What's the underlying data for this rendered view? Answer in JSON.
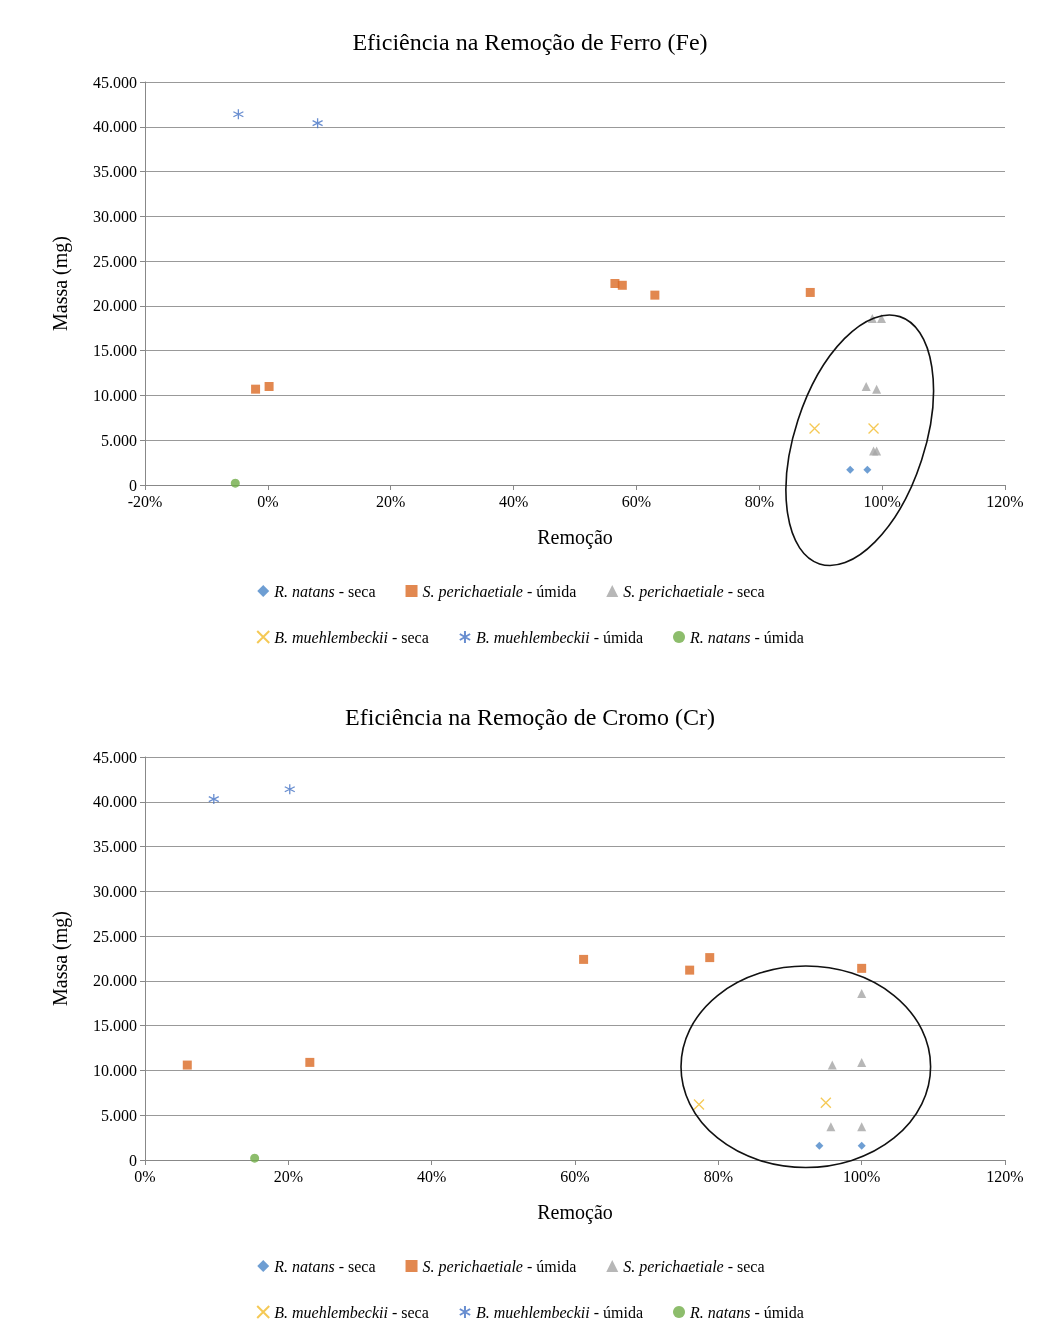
{
  "chart_data": [
    {
      "type": "scatter",
      "title": "Eficiência na Remoção de Ferro (Fe)",
      "xlabel": "Remoção",
      "ylabel": "Massa (mg)",
      "xlim": [
        -20,
        120
      ],
      "xticks": [
        {
          "value": -20,
          "label": "-20%"
        },
        {
          "value": 0,
          "label": "0%"
        },
        {
          "value": 20,
          "label": "20%"
        },
        {
          "value": 40,
          "label": "40%"
        },
        {
          "value": 60,
          "label": "60%"
        },
        {
          "value": 80,
          "label": "80%"
        },
        {
          "value": 100,
          "label": "100%"
        },
        {
          "value": 120,
          "label": "120%"
        }
      ],
      "ylim": [
        0,
        45000
      ],
      "yticks": [
        0,
        {
          "value": 5000,
          "label": "5.000"
        },
        {
          "value": 10000,
          "label": "10.000"
        },
        {
          "value": 15000,
          "label": "15.000"
        },
        {
          "value": 20000,
          "label": "20.000"
        },
        {
          "value": 25000,
          "label": "25.000"
        },
        {
          "value": 30000,
          "label": "30.000"
        },
        {
          "value": 35000,
          "label": "35.000"
        },
        {
          "value": 40000,
          "label": "40.000"
        },
        {
          "value": 45000,
          "label": "45.000"
        }
      ],
      "grid": "y",
      "legend": "bottom",
      "series": [
        {
          "name": "R. natans - seca",
          "color": "#4a86c8",
          "marker": "diamond",
          "x": [
            94.8,
            97.6
          ],
          "values": [
            1700,
            1700
          ]
        },
        {
          "name": "S. perichaetiale - úmida",
          "color": "#db6a24",
          "marker": "square",
          "x": [
            -2,
            0.2,
            56.5,
            57.7,
            63,
            88.3
          ],
          "values": [
            10700,
            11000,
            22500,
            22300,
            21200,
            21500
          ]
        },
        {
          "name": "S. perichaetiale - seca",
          "color": "#a5a5a5",
          "marker": "triangle",
          "x": [
            98.4,
            99.9,
            97.4,
            99.1,
            98.6,
            99.1
          ],
          "values": [
            18600,
            18600,
            11000,
            10700,
            3800,
            3800
          ]
        },
        {
          "name": "B. muehlembeckii - seca",
          "color": "#f2bb2a",
          "marker": "cross",
          "x": [
            89,
            98.6
          ],
          "values": [
            6300,
            6300
          ]
        },
        {
          "name": "B. muehlembeckii - úmida",
          "color": "#4472c4",
          "x": [
            -4.8,
            8.1
          ],
          "values": [
            41400,
            40400
          ]
        },
        {
          "name": "R. natans - úmida",
          "color": "#70ad47",
          "marker": "circle",
          "x": [
            -5.3
          ],
          "values": [
            200
          ]
        }
      ]
    },
    {
      "type": "scatter",
      "title": "Eficiência na Remoção de Cromo (Cr)",
      "xlabel": "Remoção",
      "ylabel": "Massa (mg)",
      "xlim": [
        0,
        120
      ],
      "xticks": [
        {
          "value": 0,
          "label": "0%"
        },
        {
          "value": 20,
          "label": "20%"
        },
        {
          "value": 40,
          "label": "40%"
        },
        {
          "value": 60,
          "label": "60%"
        },
        {
          "value": 80,
          "label": "80%"
        },
        {
          "value": 100,
          "label": "100%"
        },
        {
          "value": 120,
          "label": "120%"
        }
      ],
      "ylim": [
        0,
        45000
      ],
      "yticks": [
        0,
        {
          "value": 5000,
          "label": "5.000"
        },
        {
          "value": 10000,
          "label": "10.000"
        },
        {
          "value": 15000,
          "label": "15.000"
        },
        {
          "value": 20000,
          "label": "20.000"
        },
        {
          "value": 25000,
          "label": "25.000"
        },
        {
          "value": 30000,
          "label": "30.000"
        },
        {
          "value": 35000,
          "label": "35.000"
        },
        {
          "value": 40000,
          "label": "40.000"
        },
        {
          "value": 45000,
          "label": "45.000"
        }
      ],
      "grid": "y",
      "legend": "bottom",
      "series": [
        {
          "name": "R. natans - seca",
          "color": "#4a86c8",
          "marker": "diamond",
          "x": [
            94.1,
            100
          ],
          "values": [
            1600,
            1600
          ]
        },
        {
          "name": "S. perichaetiale - úmida",
          "color": "#db6a24",
          "marker": "square",
          "x": [
            5.9,
            23,
            61.2,
            76,
            78.8,
            100
          ],
          "values": [
            10600,
            10900,
            22400,
            21200,
            22600,
            21400
          ]
        },
        {
          "name": "S. perichaetiale - seca",
          "color": "#a5a5a5",
          "marker": "triangle",
          "x": [
            100,
            95.9,
            100,
            95.7,
            100
          ],
          "values": [
            18600,
            10600,
            10900,
            3700,
            3700
          ]
        },
        {
          "name": "B. muehlembeckii - seca",
          "color": "#f2bb2a",
          "marker": "cross",
          "x": [
            77.3,
            95
          ],
          "values": [
            6200,
            6400
          ]
        },
        {
          "name": "B. muehlembeckii - úmida",
          "color": "#4472c4",
          "x": [
            9.6,
            20.2
          ],
          "values": [
            40300,
            41400
          ]
        },
        {
          "name": "R. natans - úmida",
          "color": "#70ad47",
          "marker": "circle",
          "x": [
            15.3
          ],
          "values": [
            200
          ]
        }
      ]
    }
  ]
}
